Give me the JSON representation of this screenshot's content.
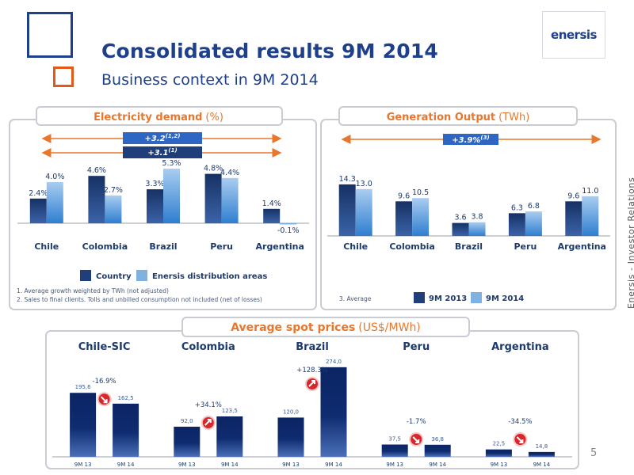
{
  "header": {
    "title": "Consolidated results 9M 2014",
    "subtitle": "Business context in 9M 2014",
    "logo_text": "enersis",
    "side_text": "Enersis - Investor Relations",
    "page_number": "5"
  },
  "colors": {
    "brand_blue": "#1e3f8a",
    "accent_orange": "#e05a1c",
    "bar_dark": "#1f3e7a",
    "bar_light": "#7fb2e0",
    "spot_bar": "#0f2c70",
    "growth_box": "#2f66c4"
  },
  "chart_data": [
    {
      "type": "bar",
      "title": "Electricity demand",
      "title_unit": "(%)",
      "categories": [
        "Chile",
        "Colombia",
        "Brazil",
        "Peru",
        "Argentina"
      ],
      "series": [
        {
          "name": "Country",
          "values": [
            2.4,
            4.6,
            3.3,
            4.8,
            1.4
          ]
        },
        {
          "name": "Enersis distribution areas",
          "values": [
            4.0,
            2.7,
            5.3,
            4.4,
            -0.1
          ]
        }
      ],
      "labels": [
        [
          "2.4%",
          "4.6%",
          "3.3%",
          "4.8%",
          "1.4%"
        ],
        [
          "4.0%",
          "2.7%",
          "5.3%",
          "4.4%",
          "-0.1%"
        ]
      ],
      "growth_labels": [
        "+3.2",
        "+3.1"
      ],
      "growth_sup": [
        "(1,2)",
        "(1)"
      ],
      "footnotes": [
        "1. Average growth weighted by TWh (not adjusted)",
        "2. Sales to final clients. Tolls and unbilled consumption not included (net of losses)"
      ],
      "ylim": [
        -0.3,
        5.8
      ],
      "legend_position": "bottom"
    },
    {
      "type": "bar",
      "title": "Generation Output",
      "title_unit": "(TWh)",
      "categories": [
        "Chile",
        "Colombia",
        "Brazil",
        "Peru",
        "Argentina"
      ],
      "series": [
        {
          "name": "9M 2013",
          "values": [
            14.3,
            9.6,
            3.6,
            6.3,
            9.6
          ]
        },
        {
          "name": "9M 2014",
          "values": [
            13.0,
            10.5,
            3.8,
            6.8,
            11.0
          ]
        }
      ],
      "labels": [
        [
          "14.3",
          "9.6",
          "3.6",
          "6.3",
          "9.6"
        ],
        [
          "13.0",
          "10.5",
          "3.8",
          "6.8",
          "11.0"
        ]
      ],
      "growth_labels": [
        "+3.9%"
      ],
      "growth_sup": [
        "(3)"
      ],
      "footnotes": [
        "3. Average"
      ],
      "ylim": [
        0,
        16
      ],
      "legend_position": "bottom"
    },
    {
      "type": "bar",
      "title": "Average spot prices",
      "title_unit": "(US$/MWh)",
      "groups": [
        {
          "name": "Chile-SIC",
          "categories": [
            "9M 13",
            "9M 14"
          ],
          "values": [
            195.6,
            162.5
          ],
          "labels": [
            "195,6",
            "162,5"
          ],
          "change": "-16.9%",
          "direction": "down"
        },
        {
          "name": "Colombia",
          "categories": [
            "9M 13",
            "9M 14"
          ],
          "values": [
            92.0,
            123.5
          ],
          "labels": [
            "92,0",
            "123,5"
          ],
          "change": "+34.1%",
          "direction": "up"
        },
        {
          "name": "Brazil",
          "categories": [
            "9M 13",
            "9M 14"
          ],
          "values": [
            120.0,
            274.0
          ],
          "labels": [
            "120,0",
            "274,0"
          ],
          "change": "+128.3%",
          "direction": "up"
        },
        {
          "name": "Peru",
          "categories": [
            "9M 13",
            "9M 14"
          ],
          "values": [
            37.5,
            36.8
          ],
          "labels": [
            "37,5",
            "36,8"
          ],
          "change": "-1.7%",
          "direction": "down"
        },
        {
          "name": "Argentina",
          "categories": [
            "9M 13",
            "9M 14"
          ],
          "values": [
            22.5,
            14.8
          ],
          "labels": [
            "22,5",
            "14,8"
          ],
          "change": "-34.5%",
          "direction": "down"
        }
      ],
      "ylim": [
        0,
        280
      ]
    }
  ]
}
